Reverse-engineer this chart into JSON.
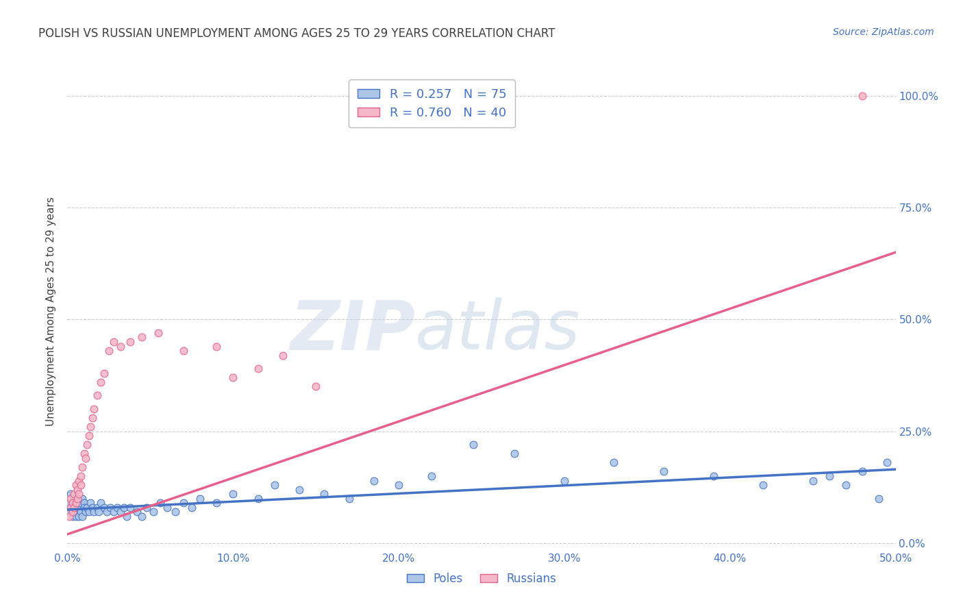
{
  "title": "POLISH VS RUSSIAN UNEMPLOYMENT AMONG AGES 25 TO 29 YEARS CORRELATION CHART",
  "source": "Source: ZipAtlas.com",
  "ylabel": "Unemployment Among Ages 25 to 29 years",
  "xlim": [
    0.0,
    0.5
  ],
  "ylim": [
    -0.015,
    1.05
  ],
  "poles_scatter_x": [
    0.001,
    0.001,
    0.002,
    0.002,
    0.003,
    0.003,
    0.003,
    0.004,
    0.004,
    0.004,
    0.005,
    0.005,
    0.005,
    0.006,
    0.006,
    0.006,
    0.007,
    0.007,
    0.008,
    0.008,
    0.009,
    0.009,
    0.01,
    0.01,
    0.011,
    0.012,
    0.013,
    0.014,
    0.015,
    0.016,
    0.018,
    0.019,
    0.02,
    0.022,
    0.024,
    0.026,
    0.028,
    0.03,
    0.032,
    0.034,
    0.036,
    0.038,
    0.042,
    0.045,
    0.048,
    0.052,
    0.056,
    0.06,
    0.065,
    0.07,
    0.075,
    0.08,
    0.09,
    0.1,
    0.115,
    0.125,
    0.14,
    0.155,
    0.17,
    0.185,
    0.2,
    0.22,
    0.245,
    0.27,
    0.3,
    0.33,
    0.36,
    0.39,
    0.42,
    0.45,
    0.46,
    0.47,
    0.48,
    0.49,
    0.495
  ],
  "poles_scatter_y": [
    0.09,
    0.07,
    0.08,
    0.11,
    0.07,
    0.09,
    0.06,
    0.08,
    0.1,
    0.07,
    0.09,
    0.06,
    0.08,
    0.1,
    0.07,
    0.09,
    0.08,
    0.06,
    0.09,
    0.07,
    0.1,
    0.06,
    0.09,
    0.08,
    0.07,
    0.08,
    0.07,
    0.09,
    0.08,
    0.07,
    0.08,
    0.07,
    0.09,
    0.08,
    0.07,
    0.08,
    0.07,
    0.08,
    0.07,
    0.08,
    0.06,
    0.08,
    0.07,
    0.06,
    0.08,
    0.07,
    0.09,
    0.08,
    0.07,
    0.09,
    0.08,
    0.1,
    0.09,
    0.11,
    0.1,
    0.13,
    0.12,
    0.11,
    0.1,
    0.14,
    0.13,
    0.15,
    0.22,
    0.2,
    0.14,
    0.18,
    0.16,
    0.15,
    0.13,
    0.14,
    0.15,
    0.13,
    0.16,
    0.1,
    0.18
  ],
  "russians_scatter_x": [
    0.001,
    0.002,
    0.002,
    0.003,
    0.003,
    0.004,
    0.004,
    0.005,
    0.005,
    0.006,
    0.006,
    0.007,
    0.007,
    0.008,
    0.008,
    0.009,
    0.01,
    0.011,
    0.012,
    0.013,
    0.014,
    0.015,
    0.016,
    0.018,
    0.02,
    0.022,
    0.025,
    0.028,
    0.032,
    0.038,
    0.045,
    0.055,
    0.07,
    0.09,
    0.1,
    0.115,
    0.13,
    0.15,
    0.48
  ],
  "russians_scatter_y": [
    0.06,
    0.08,
    0.1,
    0.07,
    0.09,
    0.08,
    0.11,
    0.09,
    0.13,
    0.1,
    0.12,
    0.11,
    0.14,
    0.13,
    0.15,
    0.17,
    0.2,
    0.19,
    0.22,
    0.24,
    0.26,
    0.28,
    0.3,
    0.33,
    0.36,
    0.38,
    0.43,
    0.45,
    0.44,
    0.45,
    0.46,
    0.47,
    0.43,
    0.44,
    0.37,
    0.39,
    0.42,
    0.35,
    1.0
  ],
  "poles_line_x": [
    0.0,
    0.5
  ],
  "poles_line_y": [
    0.075,
    0.165
  ],
  "russians_line_x": [
    0.0,
    0.5
  ],
  "russians_line_y": [
    0.02,
    0.65
  ],
  "poles_color": "#4472c4",
  "russians_color": "#e8608a",
  "poles_scatter_facecolor": "#adc6e8",
  "russians_scatter_facecolor": "#f4b8c8",
  "background_color": "#ffffff",
  "grid_color": "#cccccc",
  "title_color": "#404040",
  "axis_tick_color": "#4472c4",
  "ylabel_color": "#404040"
}
